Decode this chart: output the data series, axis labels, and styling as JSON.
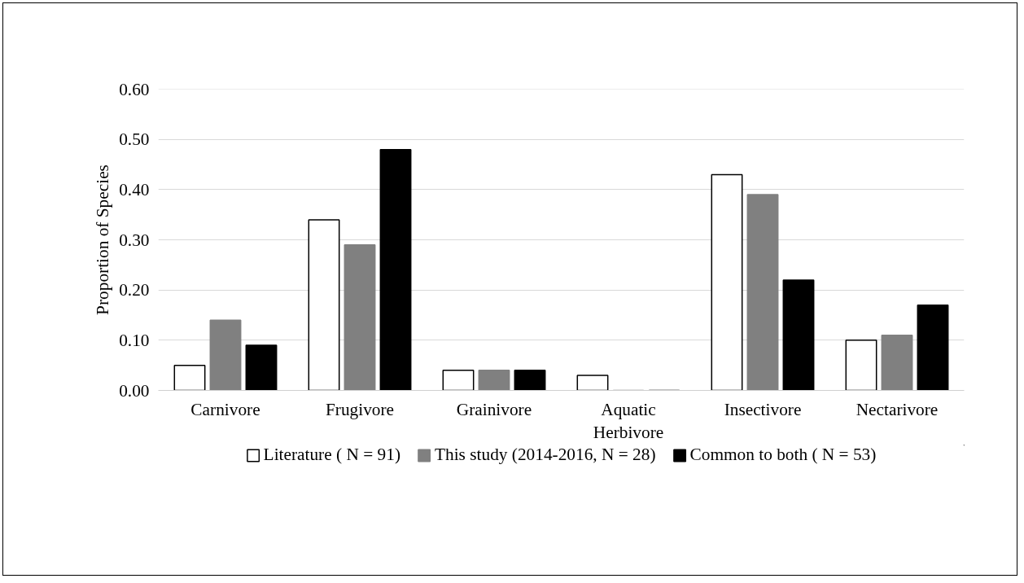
{
  "chart_data": {
    "type": "bar",
    "ylabel": "Proportion of Species",
    "categories": [
      "Carnivore",
      "Frugivore",
      "Grainivore",
      "Aquatic\nHerbivore",
      "Insectivore",
      "Nectarivore"
    ],
    "series": [
      {
        "name": "Literature ( N = 91)",
        "color": "#ffffff",
        "values": [
          0.05,
          0.34,
          0.04,
          0.03,
          0.43,
          0.1
        ]
      },
      {
        "name": "This study (2014-2016, N = 28)",
        "color": "#808080",
        "values": [
          0.14,
          0.29,
          0.04,
          0,
          0.39,
          0.11
        ]
      },
      {
        "name": "Common to both ( N = 53)",
        "color": "#000000",
        "values": [
          0.09,
          0.48,
          0.04,
          0,
          0.22,
          0.17
        ]
      }
    ],
    "ylim": [
      0,
      0.6
    ],
    "yticks": [
      {
        "value": 0,
        "label": "0.00"
      },
      {
        "value": 0.1,
        "label": "0.10"
      },
      {
        "value": 0.2,
        "label": "0.20"
      },
      {
        "value": 0.3,
        "label": "0.30"
      },
      {
        "value": 0.4,
        "label": "0.40"
      },
      {
        "value": 0.5,
        "label": "0.50"
      },
      {
        "value": 0.6,
        "label": "0.60"
      }
    ],
    "grid": "y",
    "legend": "bottom"
  }
}
